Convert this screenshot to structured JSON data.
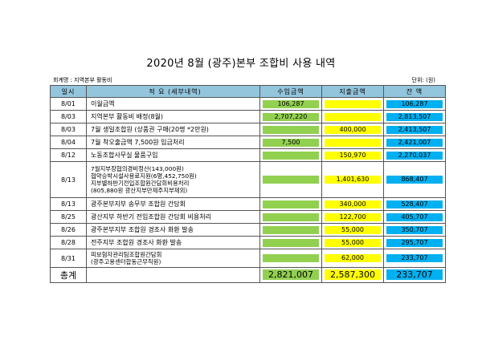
{
  "title": "2020년 8월 (광주)본부 조합비 사용 내역",
  "account_label": "회계명 : 지역본부 활동비",
  "unit_label": "단위: (원)",
  "columns": {
    "date": "일시",
    "description": "적 요 (세부내역)",
    "income": "수입금액",
    "expense": "지출금액",
    "balance": "잔 액"
  },
  "rows": [
    {
      "date": "8/01",
      "description": [
        "이월금액"
      ],
      "income": "106,287",
      "expense": "",
      "balance": "106,287"
    },
    {
      "date": "8/03",
      "description": [
        "지역본부 활동비 배정(8월)"
      ],
      "income": "2,707,220",
      "expense": "",
      "balance": "2,813,507"
    },
    {
      "date": "8/03",
      "description": [
        "7월 생일조합원 (상품권 구매(20명 *2만원)"
      ],
      "income": "",
      "expense": "400,000",
      "balance": "2,413,507"
    },
    {
      "date": "8/04",
      "description": [
        "7월 착오출금액 7,500원 입금처리"
      ],
      "income": "7,500",
      "expense": "",
      "balance": "2,421,007"
    },
    {
      "date": "8/12",
      "description": [
        "노동조합사무실 물품구입"
      ],
      "income": "",
      "expense": "150,970",
      "balance": "2,270,037"
    },
    {
      "date": "8/13",
      "description": [
        "7월지부장협의경비정산(143,000원)",
        "협약승박시설사용료지원(6명,452,750원)",
        "지부별하반기전입조합원간담회비용처리",
        "(805,880원 광산지부만제주지부제외)"
      ],
      "income": "",
      "expense": "1,401,630",
      "balance": "868,407"
    },
    {
      "date": "8/13",
      "description": [
        "광주본부지부 송무부 조합원 간담회"
      ],
      "income": "",
      "expense": "340,000",
      "balance": "528,407"
    },
    {
      "date": "8/25",
      "description": [
        "광산지부 하반기 전입조합원 간담회 비용처리"
      ],
      "income": "",
      "expense": "122,700",
      "balance": "405,707"
    },
    {
      "date": "8/26",
      "description": [
        "광주본부지부 조합원 경조사 화환 발송"
      ],
      "income": "",
      "expense": "55,000",
      "balance": "350,707"
    },
    {
      "date": "8/28",
      "description": [
        "전주지부 조합원 경조사 화환 발송"
      ],
      "income": "",
      "expense": "55,000",
      "balance": "295,707"
    },
    {
      "date": "8/31",
      "description": [
        "피보험자관리팀조합원간담회",
        "(광주고용센터합동근무직원)"
      ],
      "income": "",
      "expense": "62,000",
      "balance": "233,707"
    }
  ],
  "total": {
    "label": "총계",
    "income": "2,821,007",
    "expense": "2,587,300",
    "balance": "233,707"
  },
  "colors": {
    "income": "#92d050",
    "expense": "#ffff00",
    "balance": "#00b0f0",
    "header": "#93c5dd"
  }
}
